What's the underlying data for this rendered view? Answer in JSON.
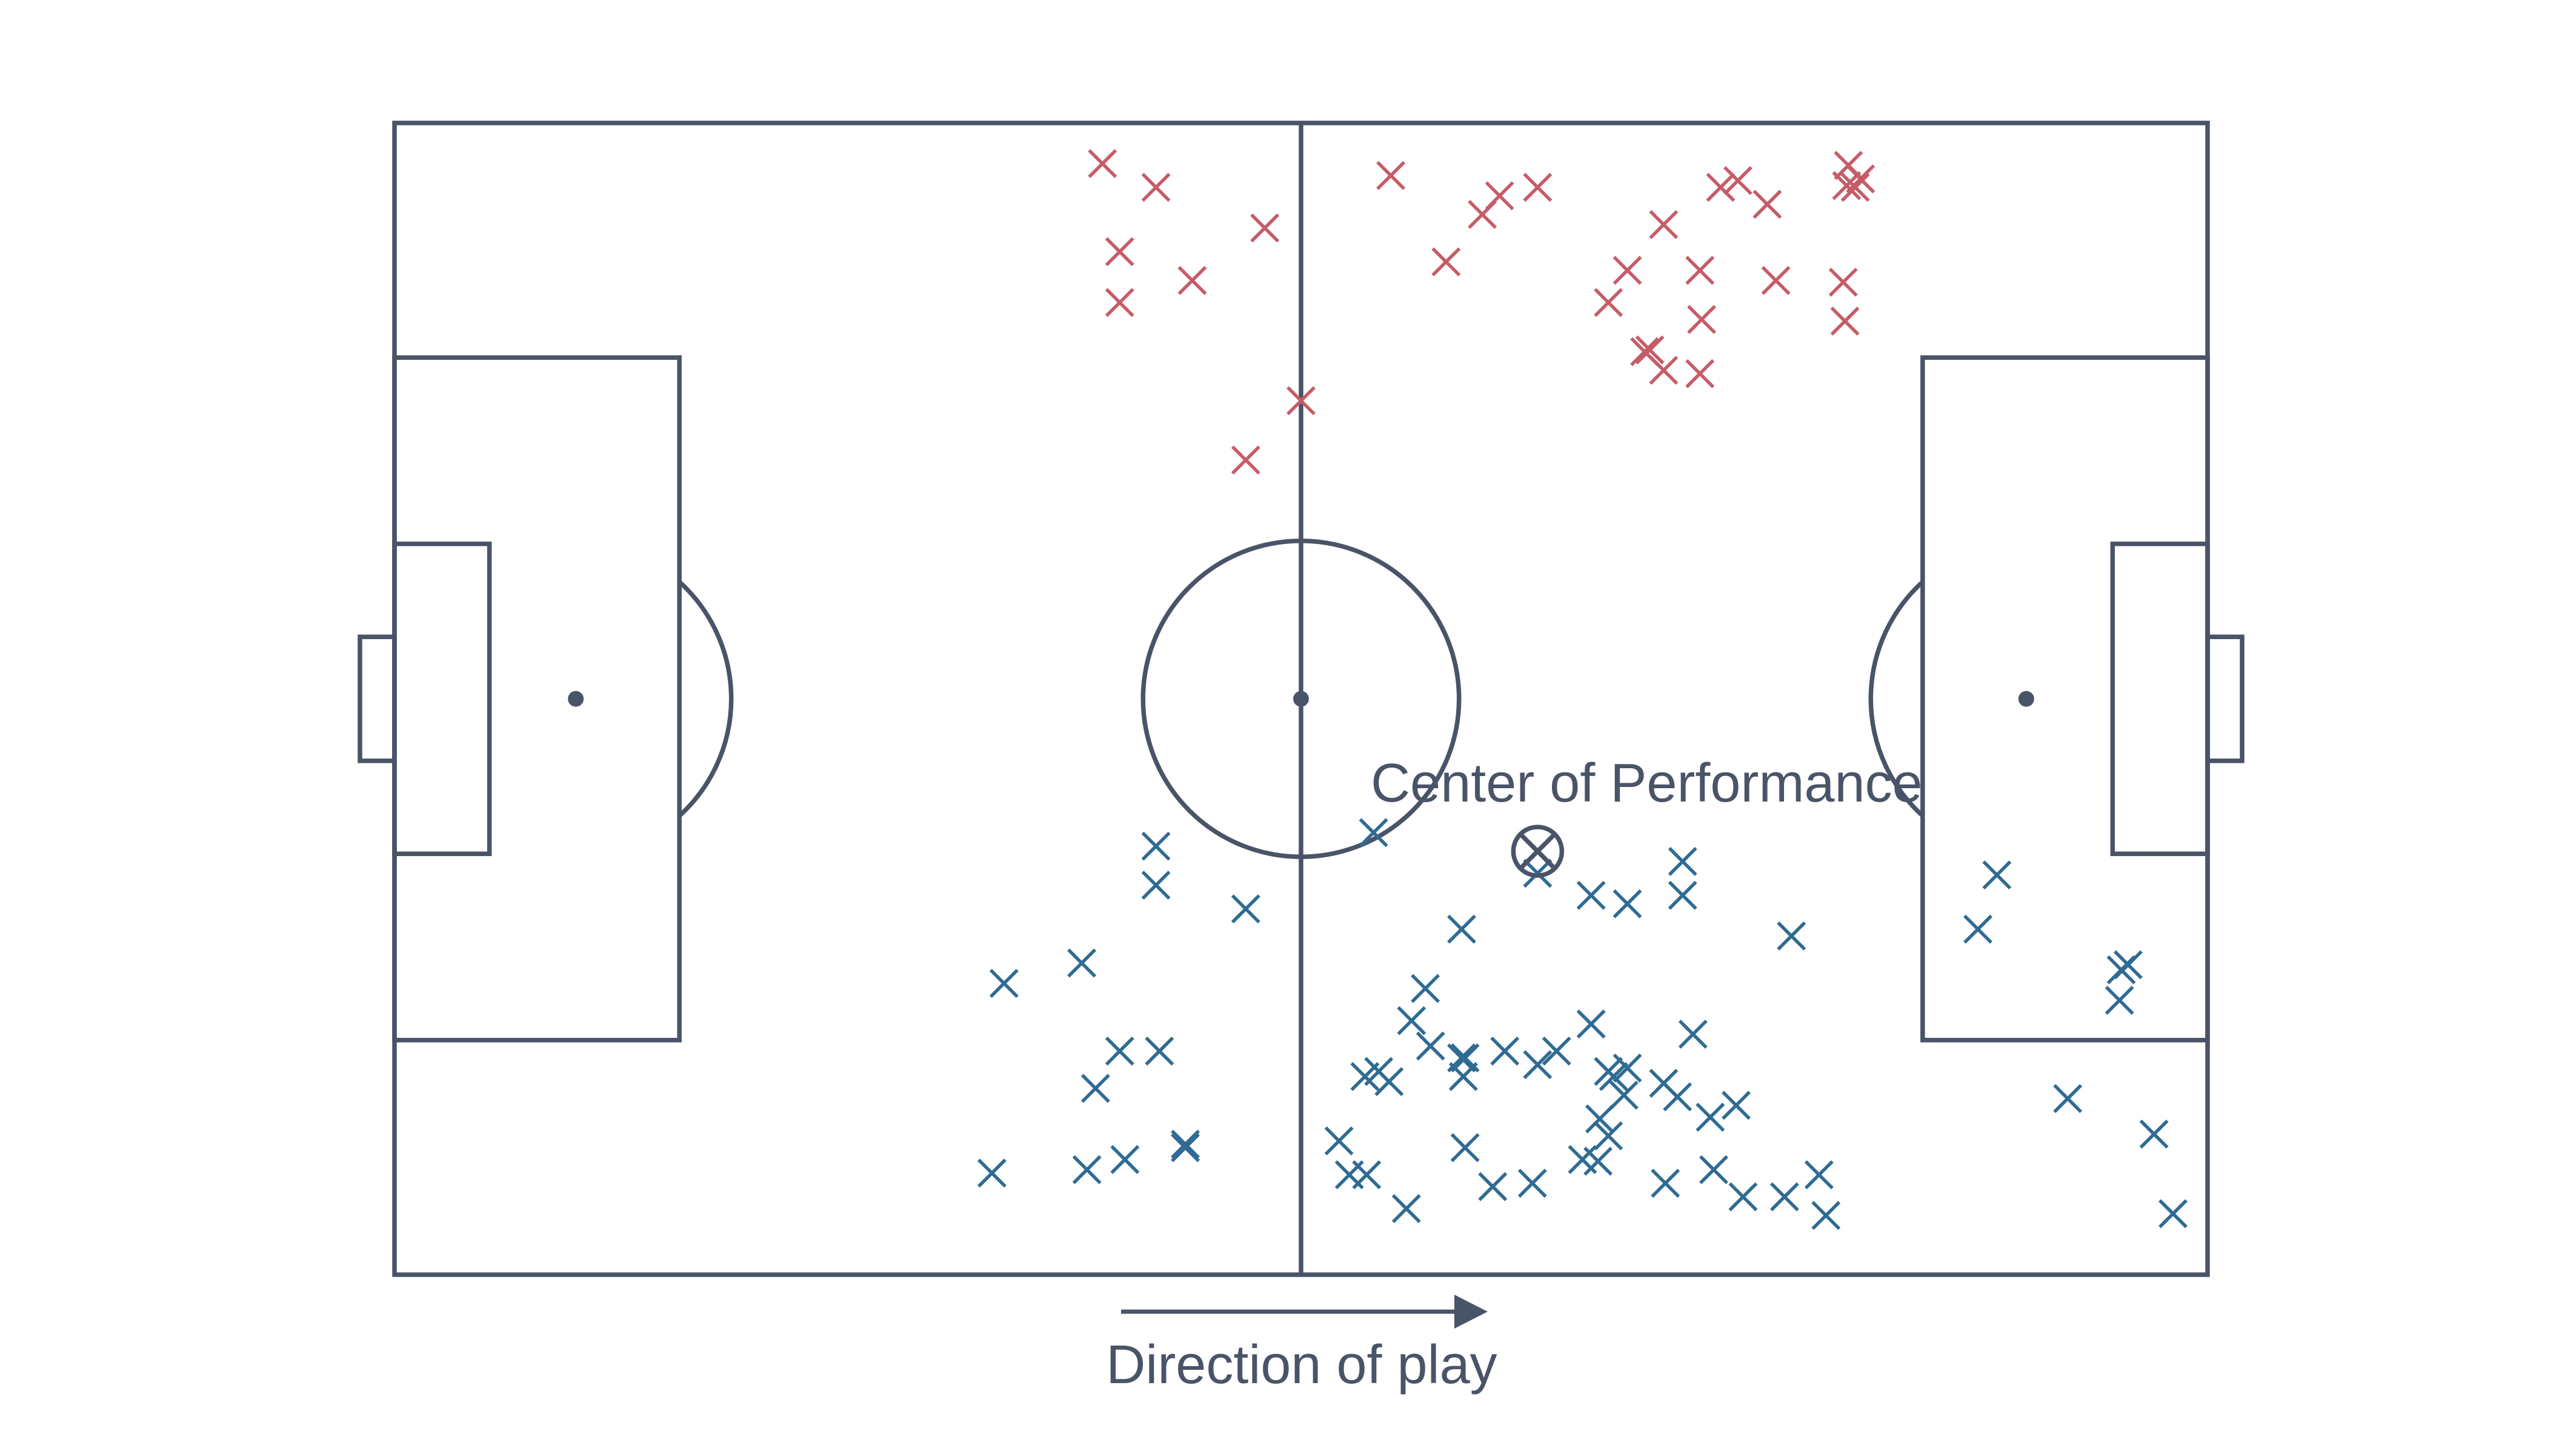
{
  "colors": {
    "line": "#4a5468",
    "red": "#c65c68",
    "blue": "#2f6b93",
    "background": "#ffffff"
  },
  "annotations": {
    "center_label": "Center of Performance",
    "direction_label": "Direction of play"
  },
  "icons": {
    "marker": "x-marker",
    "center": "circled-x-icon",
    "direction": "arrow-right-icon"
  },
  "chart_data": {
    "type": "scatter",
    "title": "",
    "xlabel": "",
    "ylabel": "",
    "xlim": [
      0,
      105
    ],
    "ylim": [
      0,
      68
    ],
    "grid": false,
    "legend": "none",
    "center_of_performance": {
      "x": 66.2,
      "y": 25.0
    },
    "series": [
      {
        "color": "#c65c68",
        "marker": "x",
        "points": [
          [
            41.0,
            65.6
          ],
          [
            44.1,
            64.2
          ],
          [
            50.4,
            61.8
          ],
          [
            42.0,
            60.4
          ],
          [
            46.2,
            58.7
          ],
          [
            42.0,
            57.4
          ],
          [
            52.5,
            51.6
          ],
          [
            49.3,
            48.1
          ],
          [
            57.7,
            64.9
          ],
          [
            63.0,
            62.6
          ],
          [
            60.9,
            59.8
          ],
          [
            64.0,
            63.7
          ],
          [
            66.2,
            64.2
          ],
          [
            70.3,
            57.4
          ],
          [
            71.4,
            59.3
          ],
          [
            73.5,
            62.0
          ],
          [
            75.7,
            56.4
          ],
          [
            80.0,
            58.7
          ],
          [
            84.0,
            56.3
          ],
          [
            75.6,
            59.3
          ],
          [
            83.9,
            58.6
          ],
          [
            84.1,
            64.3
          ],
          [
            84.2,
            65.5
          ],
          [
            84.9,
            64.7
          ],
          [
            84.6,
            64.2
          ],
          [
            72.4,
            54.5
          ],
          [
            72.7,
            54.6
          ],
          [
            73.5,
            53.4
          ],
          [
            75.6,
            53.2
          ],
          [
            76.8,
            64.2
          ],
          [
            77.8,
            64.6
          ],
          [
            79.5,
            63.2
          ]
        ]
      },
      {
        "color": "#2f6b93",
        "marker": "x",
        "points": [
          [
            44.1,
            25.3
          ],
          [
            44.1,
            23.0
          ],
          [
            49.3,
            21.6
          ],
          [
            56.7,
            26.1
          ],
          [
            61.8,
            20.4
          ],
          [
            66.2,
            23.7
          ],
          [
            69.3,
            22.4
          ],
          [
            71.4,
            21.9
          ],
          [
            74.6,
            22.4
          ],
          [
            74.6,
            24.4
          ],
          [
            80.9,
            20.0
          ],
          [
            92.8,
            23.6
          ],
          [
            91.7,
            20.4
          ],
          [
            100.0,
            18.0
          ],
          [
            100.4,
            18.3
          ],
          [
            99.9,
            16.2
          ],
          [
            101.9,
            8.3
          ],
          [
            96.9,
            10.4
          ],
          [
            39.8,
            18.4
          ],
          [
            35.3,
            17.2
          ],
          [
            42.0,
            13.2
          ],
          [
            44.3,
            13.2
          ],
          [
            40.6,
            11.0
          ],
          [
            45.8,
            7.5
          ],
          [
            42.3,
            6.8
          ],
          [
            45.8,
            7.7
          ],
          [
            40.1,
            6.2
          ],
          [
            34.6,
            6.0
          ],
          [
            58.9,
            15.0
          ],
          [
            61.8,
            12.8
          ],
          [
            62.0,
            12.8
          ],
          [
            64.3,
            13.2
          ],
          [
            66.2,
            12.4
          ],
          [
            67.3,
            13.2
          ],
          [
            69.3,
            14.8
          ],
          [
            70.6,
            11.7
          ],
          [
            70.3,
            12.0
          ],
          [
            59.7,
            16.9
          ],
          [
            61.9,
            11.7
          ],
          [
            70.3,
            8.2
          ],
          [
            73.5,
            11.3
          ],
          [
            71.2,
            10.6
          ],
          [
            69.8,
            9.2
          ],
          [
            71.4,
            12.2
          ],
          [
            75.2,
            14.2
          ],
          [
            74.3,
            10.5
          ],
          [
            76.2,
            9.3
          ],
          [
            77.7,
            10.0
          ],
          [
            76.4,
            6.2
          ],
          [
            57.0,
            12.0
          ],
          [
            56.2,
            11.7
          ],
          [
            57.6,
            11.4
          ],
          [
            60.0,
            13.5
          ],
          [
            62.0,
            7.5
          ],
          [
            56.3,
            5.9
          ],
          [
            55.3,
            5.9
          ],
          [
            58.6,
            3.9
          ],
          [
            63.6,
            5.2
          ],
          [
            65.9,
            5.4
          ],
          [
            68.8,
            6.8
          ],
          [
            69.7,
            6.7
          ],
          [
            73.6,
            5.4
          ],
          [
            80.5,
            4.6
          ],
          [
            78.1,
            4.6
          ],
          [
            82.5,
            5.9
          ],
          [
            82.9,
            3.5
          ],
          [
            103.0,
            3.6
          ],
          [
            54.7,
            7.9
          ]
        ]
      }
    ],
    "pitch_markings": {
      "length": 105,
      "width": 68,
      "penalty_area": [
        16.5,
        40.3
      ],
      "goal_area": [
        5.5,
        18.3
      ],
      "goal_width": 7.32,
      "goal_depth": 2,
      "penalty_spot": 10.5,
      "circle_radius": 9.15,
      "arc_radius": 9.15
    }
  }
}
